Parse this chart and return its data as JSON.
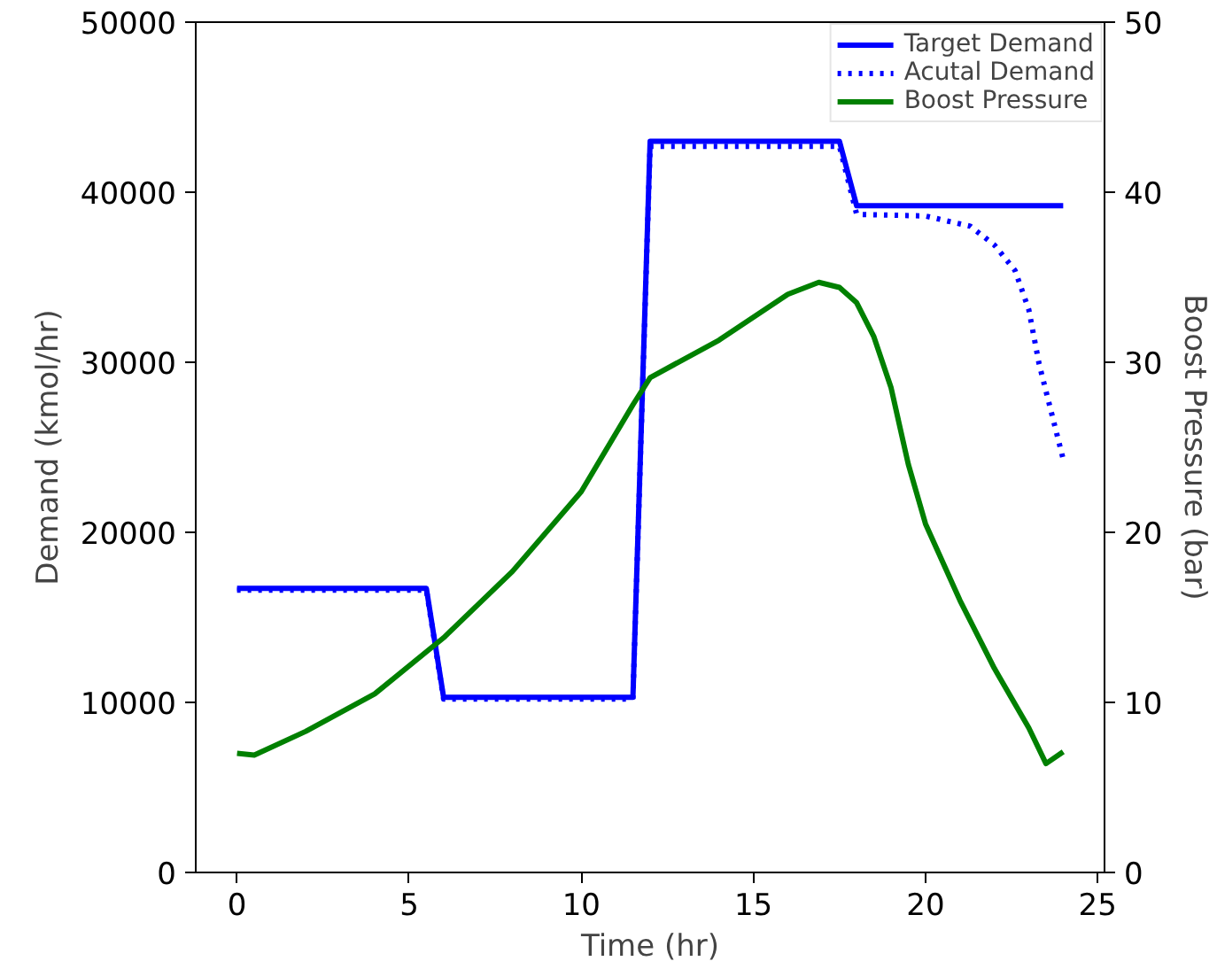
{
  "chart_data": {
    "type": "line",
    "xlabel": "Time (hr)",
    "ylabel": "Demand (kmol/hr)",
    "y2label": "Boost Pressure (bar)",
    "xlim": [
      -1.2,
      25.2
    ],
    "xticks": [
      0,
      5,
      10,
      15,
      20,
      25
    ],
    "ylim": [
      0,
      50000
    ],
    "yticks": [
      0,
      10000,
      20000,
      30000,
      40000,
      50000
    ],
    "y2lim": [
      0,
      50
    ],
    "y2ticks": [
      0,
      10,
      20,
      30,
      40,
      50
    ],
    "legend": "top right",
    "grid": false,
    "series": [
      {
        "name": "Target Demand",
        "color": "#0000ff",
        "line_style": "solid",
        "x": [
          0,
          5.5,
          6,
          11.5,
          12,
          17.5,
          18,
          24
        ],
        "values": [
          16700,
          16700,
          10300,
          10300,
          43000,
          43000,
          39200,
          39200
        ]
      },
      {
        "name": "Acutal Demand",
        "color": "#0000ff",
        "line_style": "dotted",
        "x": [
          0,
          5.5,
          6,
          11.5,
          12,
          17.5,
          18,
          20,
          21.3,
          22,
          22.6,
          23,
          23.3,
          23.7,
          24
        ],
        "values": [
          16600,
          16600,
          10200,
          10200,
          42700,
          42700,
          38700,
          38600,
          38000,
          36900,
          35400,
          33100,
          29900,
          26700,
          24300
        ]
      },
      {
        "name": "Boost Pressure",
        "color": "#008000",
        "line_style": "solid",
        "axis": "y2",
        "x": [
          0,
          0.5,
          2,
          4,
          6,
          8,
          10,
          11.5,
          12,
          14,
          16,
          16.9,
          17.5,
          18,
          18.5,
          19,
          19.5,
          20,
          21,
          22,
          23,
          23.5,
          24
        ],
        "values": [
          7.0,
          6.9,
          8.3,
          10.5,
          13.8,
          17.7,
          22.4,
          27.5,
          29.1,
          31.3,
          34.0,
          34.7,
          34.4,
          33.5,
          31.5,
          28.5,
          24,
          20.5,
          16,
          12,
          8.5,
          6.4,
          7.1
        ]
      }
    ]
  }
}
